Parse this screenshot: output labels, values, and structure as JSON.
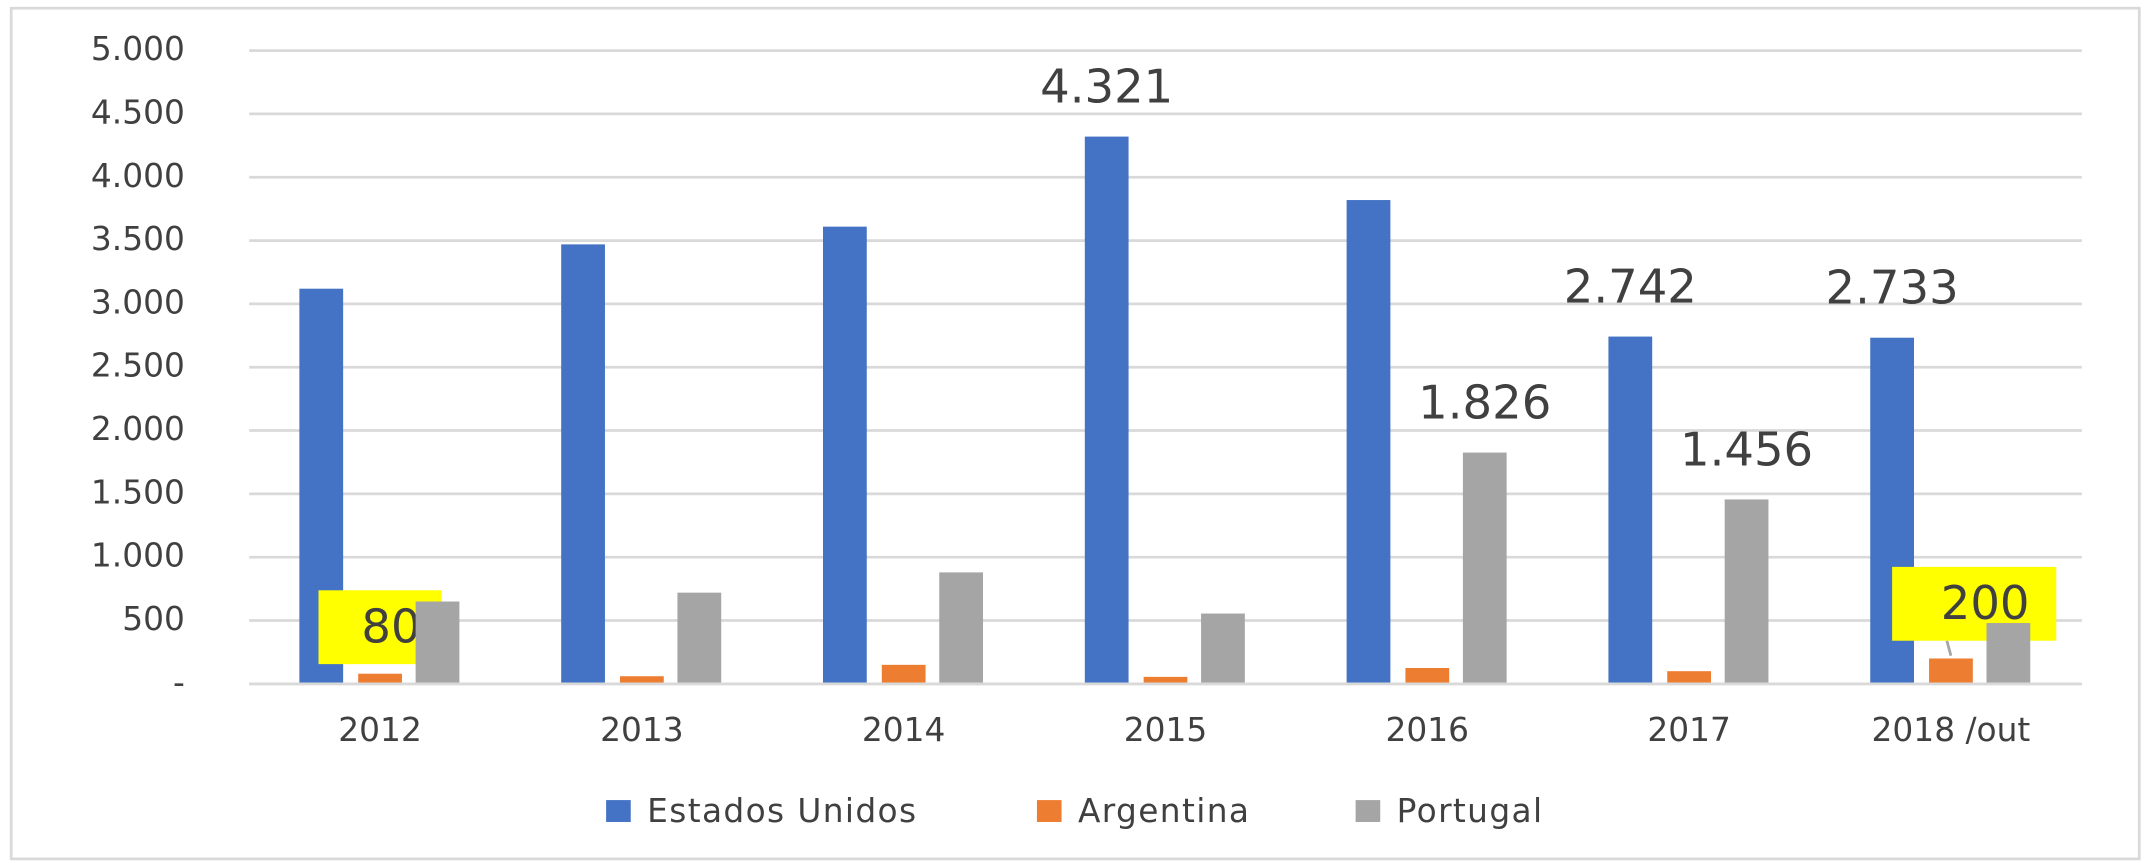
{
  "chart_data": {
    "type": "bar",
    "categories": [
      "2012",
      "2013",
      "2014",
      "2015",
      "2016",
      "2017",
      "2018 /out"
    ],
    "series": [
      {
        "name": "Estados Unidos",
        "color": "#4472c4",
        "values": [
          3120,
          3470,
          3610,
          4321,
          3820,
          2742,
          2733
        ],
        "value_labels": [
          null,
          null,
          null,
          "4.321",
          null,
          "2.742",
          "2.733"
        ]
      },
      {
        "name": "Argentina",
        "color": "#ed7d31",
        "values": [
          80,
          60,
          150,
          55,
          125,
          100,
          200
        ],
        "value_labels": [
          "80",
          null,
          null,
          null,
          null,
          null,
          "200"
        ]
      },
      {
        "name": "Portugal",
        "color": "#a5a5a5",
        "values": [
          650,
          720,
          880,
          555,
          1826,
          1456,
          480
        ],
        "value_labels": [
          null,
          null,
          null,
          null,
          "1.826",
          "1.456",
          null
        ]
      }
    ],
    "ylim": [
      0,
      5000
    ],
    "yticks": [
      {
        "value": 0,
        "label": "-"
      },
      500,
      {
        "value": 1000,
        "label": "1.000"
      },
      {
        "value": 1500,
        "label": "1.500"
      },
      {
        "value": 2000,
        "label": "2.000"
      },
      {
        "value": 2500,
        "label": "2.500"
      },
      {
        "value": 3000,
        "label": "3.000"
      },
      {
        "value": 3500,
        "label": "3.500"
      },
      {
        "value": 4000,
        "label": "4.000"
      },
      {
        "value": 4500,
        "label": "4.500"
      },
      {
        "value": 5000,
        "label": "5.000"
      }
    ],
    "grid": true,
    "legend": "bottom"
  }
}
